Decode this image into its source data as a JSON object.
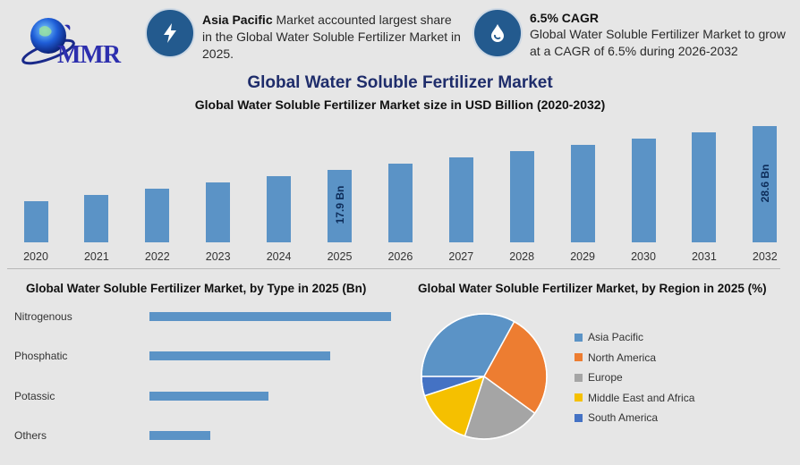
{
  "logo": {
    "text": "MMR",
    "icon": "globe-logo-icon"
  },
  "kpis": [
    {
      "icon": "lightning-icon",
      "bold": "Asia Pacific",
      "text": " Market accounted largest share in the Global Water Soluble Fertilizer Market in 2025."
    },
    {
      "icon": "water-drop-icon",
      "bold": "6.5% CAGR",
      "text": "Global Water Soluble Fertilizer Market to grow at a CAGR of 6.5% during 2026-2032"
    }
  ],
  "title": "Global Water Soluble Fertilizer Market",
  "chart_data": [
    {
      "type": "bar",
      "title": "Global Water Soluble Fertilizer Market size in USD Billion (2020-2032)",
      "xlabel": "",
      "ylabel": "USD Billion",
      "categories": [
        "2020",
        "2021",
        "2022",
        "2023",
        "2024",
        "2025",
        "2026",
        "2027",
        "2028",
        "2029",
        "2030",
        "2031",
        "2032"
      ],
      "values": [
        10.1,
        11.7,
        13.2,
        14.7,
        16.3,
        17.9,
        19.4,
        20.9,
        22.5,
        24.0,
        25.5,
        27.1,
        28.6
      ],
      "annotations": [
        {
          "category": "2025",
          "label": "17.9 Bn"
        },
        {
          "category": "2032",
          "label": "28.6 Bn"
        }
      ],
      "grid": false,
      "color": "#5b93c6"
    },
    {
      "type": "bar",
      "orientation": "horizontal",
      "title": "Global Water Soluble Fertilizer Market, by Type in 2025 (Bn)",
      "categories": [
        "Nitrogenous",
        "Phosphatic",
        "Potassic",
        "Others"
      ],
      "values": [
        7.1,
        5.3,
        3.5,
        1.8
      ],
      "grid": false,
      "color": "#5b93c6"
    },
    {
      "type": "pie",
      "title": "Global Water Soluble Fertilizer Market, by Region in 2025 (%)",
      "categories": [
        "Asia Pacific",
        "North America",
        "Europe",
        "Middle East and Africa",
        "South America"
      ],
      "values": [
        33,
        27,
        20,
        15,
        5
      ],
      "colors": [
        "#5b93c6",
        "#ed7d31",
        "#a5a5a5",
        "#f5c000",
        "#4472c4"
      ],
      "legend_position": "right"
    }
  ]
}
